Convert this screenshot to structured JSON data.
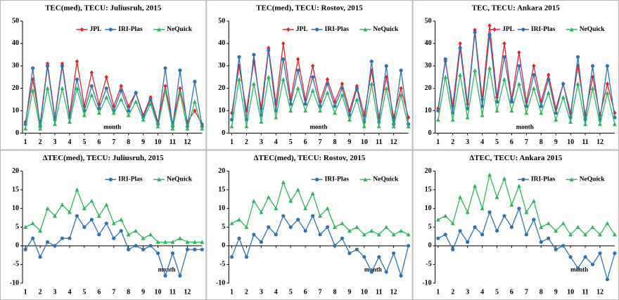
{
  "chart_data": [
    {
      "type": "line",
      "title": "TEC(med), TECU: Juliusruh, 2015",
      "annotation": "month",
      "legend": "top-right",
      "x": [
        1,
        1.5,
        2,
        2.5,
        3,
        3.5,
        4,
        4.5,
        5,
        5.5,
        6,
        6.5,
        7,
        7.5,
        8,
        8.5,
        9,
        9.5,
        10,
        10.5,
        11,
        11.5,
        12,
        12.5,
        13
      ],
      "xlim": [
        0.8,
        13
      ],
      "xticks": [
        1,
        2,
        3,
        4,
        5,
        6,
        7,
        8,
        9,
        10,
        11,
        12
      ],
      "ylim": [
        0,
        50
      ],
      "yticks": [
        0,
        10,
        20,
        30,
        40,
        50
      ],
      "series": [
        {
          "name": "JPL",
          "color": "#e8202a",
          "marker": "diamond",
          "values": [
            5,
            24,
            4,
            31,
            7,
            31,
            8,
            32,
            12,
            27,
            13,
            25,
            12,
            21,
            12,
            18,
            8,
            16,
            5,
            21,
            4,
            20,
            5,
            10,
            4
          ]
        },
        {
          "name": "IRI-Plas",
          "color": "#2e75b6",
          "marker": "circle",
          "values": [
            4,
            29,
            3,
            30,
            6,
            30,
            7,
            24,
            10,
            21,
            11,
            20,
            10,
            19,
            10,
            18,
            7,
            15,
            4,
            29,
            3,
            28,
            3,
            23,
            3
          ]
        },
        {
          "name": "NeQuick",
          "color": "#2eb85c",
          "marker": "triangle",
          "values": [
            2,
            19,
            2,
            20,
            4,
            20,
            5,
            20,
            8,
            17,
            9,
            16,
            9,
            15,
            8,
            14,
            6,
            13,
            3,
            19,
            2,
            18,
            2,
            14,
            2
          ]
        }
      ]
    },
    {
      "type": "line",
      "title": "TEC(med), TECU: Rostov, 2015",
      "annotation": "month",
      "legend": "top-right",
      "x": [
        1,
        1.5,
        2,
        2.5,
        3,
        3.5,
        4,
        4.5,
        5,
        5.5,
        6,
        6.5,
        7,
        7.5,
        8,
        8.5,
        9,
        9.5,
        10,
        10.5,
        11,
        11.5,
        12,
        12.5,
        13
      ],
      "xlim": [
        0.8,
        13
      ],
      "xticks": [
        1,
        2,
        3,
        4,
        5,
        6,
        7,
        8,
        9,
        10,
        11,
        12
      ],
      "ylim": [
        0,
        50
      ],
      "yticks": [
        0,
        10,
        20,
        30,
        40,
        50
      ],
      "series": [
        {
          "name": "JPL",
          "color": "#e8202a",
          "marker": "diamond",
          "values": [
            9,
            30,
            10,
            32,
            11,
            38,
            13,
            40,
            15,
            33,
            15,
            30,
            14,
            24,
            14,
            22,
            10,
            21,
            8,
            28,
            7,
            25,
            7,
            20,
            7
          ]
        },
        {
          "name": "IRI-Plas",
          "color": "#2e75b6",
          "marker": "circle",
          "values": [
            6,
            34,
            6,
            35,
            8,
            37,
            10,
            33,
            13,
            28,
            13,
            25,
            12,
            22,
            12,
            20,
            8,
            20,
            5,
            32,
            5,
            30,
            4,
            28,
            4
          ]
        },
        {
          "name": "NeQuick",
          "color": "#2eb85c",
          "marker": "triangle",
          "values": [
            3,
            24,
            3,
            22,
            5,
            25,
            7,
            24,
            10,
            20,
            10,
            19,
            10,
            18,
            9,
            17,
            6,
            15,
            3,
            22,
            3,
            20,
            3,
            17,
            3
          ]
        }
      ]
    },
    {
      "type": "line",
      "title": "TEC, TECU: Ankara 2015",
      "annotation": "month",
      "legend": "top-right",
      "x": [
        1,
        1.5,
        2,
        2.5,
        3,
        3.5,
        4,
        4.5,
        5,
        5.5,
        6,
        6.5,
        7,
        7.5,
        8,
        8.5,
        9,
        9.5,
        10,
        10.5,
        11,
        11.5,
        12,
        12.5,
        13
      ],
      "xlim": [
        0.8,
        13
      ],
      "xticks": [
        1,
        2,
        3,
        4,
        5,
        6,
        7,
        8,
        9,
        10,
        11,
        12
      ],
      "ylim": [
        0,
        50
      ],
      "yticks": [
        0,
        10,
        20,
        30,
        40,
        50
      ],
      "series": [
        {
          "name": "JPL",
          "color": "#e8202a",
          "marker": "diamond",
          "values": [
            11,
            32,
            12,
            40,
            13,
            46,
            15,
            48,
            16,
            40,
            15,
            36,
            14,
            30,
            14,
            26,
            11,
            22,
            9,
            30,
            8,
            25,
            8,
            22,
            9
          ]
        },
        {
          "name": "IRI-Plas",
          "color": "#2e75b6",
          "marker": "circle",
          "values": [
            10,
            33,
            9,
            38,
            11,
            45,
            12,
            44,
            14,
            34,
            14,
            30,
            12,
            26,
            12,
            24,
            9,
            22,
            7,
            34,
            6,
            30,
            6,
            30,
            7
          ]
        },
        {
          "name": "NeQuick",
          "color": "#2eb85c",
          "marker": "triangle",
          "values": [
            6,
            25,
            6,
            26,
            7,
            28,
            8,
            29,
            10,
            24,
            10,
            22,
            9,
            20,
            9,
            18,
            6,
            16,
            5,
            22,
            4,
            20,
            4,
            18,
            4
          ]
        }
      ]
    },
    {
      "type": "line",
      "title": "ΔTEC(med), TECU: Juliusruh, 2015",
      "annotation": "month",
      "legend": "top-right",
      "x": [
        1,
        1.5,
        2,
        2.5,
        3,
        3.5,
        4,
        4.5,
        5,
        5.5,
        6,
        6.5,
        7,
        7.5,
        8,
        8.5,
        9,
        9.5,
        10,
        10.5,
        11,
        11.5,
        12,
        12.5,
        13
      ],
      "xlim": [
        0.8,
        13
      ],
      "xticks": [
        1,
        2,
        3,
        4,
        5,
        6,
        7,
        8,
        9,
        10,
        11,
        12
      ],
      "ylim": [
        -10,
        20
      ],
      "yticks": [
        -10,
        -5,
        0,
        5,
        10,
        15,
        20
      ],
      "series": [
        {
          "name": "IRI-Plas",
          "color": "#2e75b6",
          "marker": "circle",
          "values": [
            -1,
            2,
            -3,
            1,
            0,
            2,
            2,
            8,
            5,
            7,
            3,
            6,
            2,
            4,
            -1,
            0,
            -1,
            0,
            -2,
            -8,
            -2,
            -8,
            -1,
            -1,
            -1
          ]
        },
        {
          "name": "NeQuick",
          "color": "#2eb85c",
          "marker": "triangle",
          "values": [
            5,
            6,
            4,
            10,
            8,
            11,
            9,
            15,
            10,
            12,
            8,
            11,
            6,
            7,
            3,
            4,
            2,
            3,
            1,
            1,
            1,
            2,
            1,
            1,
            1
          ]
        }
      ]
    },
    {
      "type": "line",
      "title": "ΔTEC(med), TECU: Rostov, 2015",
      "annotation": "month",
      "legend": "top-right",
      "x": [
        1,
        1.5,
        2,
        2.5,
        3,
        3.5,
        4,
        4.5,
        5,
        5.5,
        6,
        6.5,
        7,
        7.5,
        8,
        8.5,
        9,
        9.5,
        10,
        10.5,
        11,
        11.5,
        12,
        12.5,
        13
      ],
      "xlim": [
        0.8,
        13
      ],
      "xticks": [
        1,
        2,
        3,
        4,
        5,
        6,
        7,
        8,
        9,
        10,
        11,
        12
      ],
      "ylim": [
        -10,
        20
      ],
      "yticks": [
        -10,
        -5,
        0,
        5,
        10,
        15,
        20
      ],
      "series": [
        {
          "name": "IRI-Plas",
          "color": "#2e75b6",
          "marker": "circle",
          "values": [
            -3,
            2,
            -3,
            3,
            1,
            5,
            3,
            8,
            5,
            7,
            4,
            8,
            3,
            5,
            0,
            2,
            -2,
            -1,
            -3,
            -7,
            -3,
            -7,
            -2,
            -8,
            0
          ]
        },
        {
          "name": "NeQuick",
          "color": "#2eb85c",
          "marker": "triangle",
          "values": [
            6,
            7,
            5,
            12,
            9,
            13,
            10,
            17,
            12,
            15,
            10,
            14,
            8,
            10,
            5,
            6,
            4,
            5,
            3,
            4,
            3,
            5,
            3,
            4,
            3
          ]
        }
      ]
    },
    {
      "type": "line",
      "title": "ΔTEC, TECU: Ankara 2015",
      "annotation": "month",
      "legend": "top-right",
      "x": [
        1,
        1.5,
        2,
        2.5,
        3,
        3.5,
        4,
        4.5,
        5,
        5.5,
        6,
        6.5,
        7,
        7.5,
        8,
        8.5,
        9,
        9.5,
        10,
        10.5,
        11,
        11.5,
        12,
        12.5,
        13
      ],
      "xlim": [
        0.8,
        13
      ],
      "xticks": [
        1,
        2,
        3,
        4,
        5,
        6,
        7,
        8,
        9,
        10,
        11,
        12
      ],
      "ylim": [
        -10,
        20
      ],
      "yticks": [
        -10,
        -5,
        0,
        5,
        10,
        15,
        20
      ],
      "series": [
        {
          "name": "IRI-Plas",
          "color": "#2e75b6",
          "marker": "circle",
          "values": [
            2,
            3,
            -1,
            4,
            1,
            5,
            3,
            9,
            4,
            8,
            5,
            10,
            3,
            7,
            1,
            2,
            -1,
            0,
            -3,
            -6,
            -3,
            -5,
            -2,
            -9,
            -2
          ]
        },
        {
          "name": "NeQuick",
          "color": "#2eb85c",
          "marker": "triangle",
          "values": [
            7,
            8,
            6,
            13,
            9,
            16,
            10,
            19,
            13,
            18,
            11,
            16,
            9,
            12,
            5,
            6,
            4,
            6,
            3,
            5,
            3,
            5,
            3,
            6,
            3
          ]
        }
      ]
    }
  ]
}
